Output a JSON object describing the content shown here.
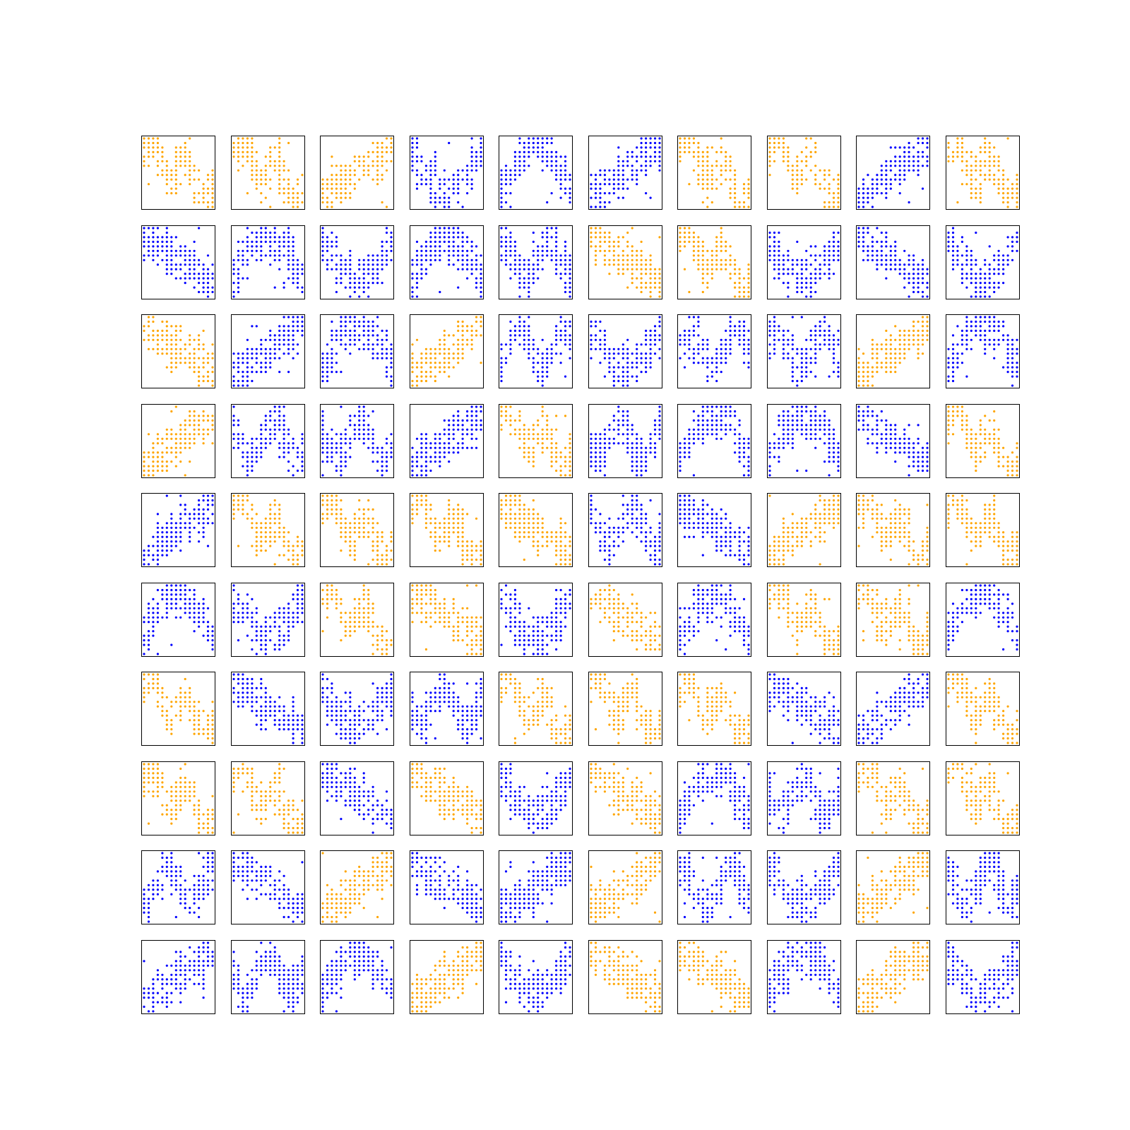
{
  "chart_data": {
    "type": "scatter",
    "title": "",
    "xlabel": "",
    "ylabel": "",
    "grid": false,
    "legend": "none",
    "layout": {
      "rows": 10,
      "cols": 10
    },
    "axis_range": {
      "x": [
        0,
        15
      ],
      "y": [
        0,
        15
      ]
    },
    "colors": {
      "orange": "#FFA500",
      "blue": "#0000FF",
      "frame": "#000000"
    },
    "panels": [
      {
        "color": "orange",
        "shape": "z"
      },
      {
        "color": "orange",
        "shape": "z"
      },
      {
        "color": "orange",
        "shape": "rise"
      },
      {
        "color": "blue",
        "shape": "valley"
      },
      {
        "color": "blue",
        "shape": "peak"
      },
      {
        "color": "blue",
        "shape": "rise"
      },
      {
        "color": "orange",
        "shape": "z"
      },
      {
        "color": "orange",
        "shape": "z"
      },
      {
        "color": "blue",
        "shape": "rise"
      },
      {
        "color": "orange",
        "shape": "z"
      },
      {
        "color": "blue",
        "shape": "fall"
      },
      {
        "color": "blue",
        "shape": "peak"
      },
      {
        "color": "blue",
        "shape": "valley"
      },
      {
        "color": "blue",
        "shape": "peak"
      },
      {
        "color": "blue",
        "shape": "wave"
      },
      {
        "color": "orange",
        "shape": "fall"
      },
      {
        "color": "orange",
        "shape": "z"
      },
      {
        "color": "blue",
        "shape": "valley"
      },
      {
        "color": "blue",
        "shape": "fall"
      },
      {
        "color": "blue",
        "shape": "valley"
      },
      {
        "color": "orange",
        "shape": "fall"
      },
      {
        "color": "blue",
        "shape": "rise"
      },
      {
        "color": "blue",
        "shape": "peak"
      },
      {
        "color": "orange",
        "shape": "rise"
      },
      {
        "color": "blue",
        "shape": "wave"
      },
      {
        "color": "blue",
        "shape": "valley"
      },
      {
        "color": "blue",
        "shape": "wave"
      },
      {
        "color": "blue",
        "shape": "wave"
      },
      {
        "color": "orange",
        "shape": "rise"
      },
      {
        "color": "blue",
        "shape": "peak"
      },
      {
        "color": "orange",
        "shape": "rise"
      },
      {
        "color": "blue",
        "shape": "wave"
      },
      {
        "color": "blue",
        "shape": "wave"
      },
      {
        "color": "blue",
        "shape": "rise"
      },
      {
        "color": "orange",
        "shape": "z"
      },
      {
        "color": "blue",
        "shape": "wave"
      },
      {
        "color": "blue",
        "shape": "peak"
      },
      {
        "color": "blue",
        "shape": "peak"
      },
      {
        "color": "blue",
        "shape": "fall"
      },
      {
        "color": "orange",
        "shape": "z"
      },
      {
        "color": "blue",
        "shape": "rise"
      },
      {
        "color": "orange",
        "shape": "z"
      },
      {
        "color": "orange",
        "shape": "z"
      },
      {
        "color": "orange",
        "shape": "z"
      },
      {
        "color": "orange",
        "shape": "fall"
      },
      {
        "color": "blue",
        "shape": "wave"
      },
      {
        "color": "blue",
        "shape": "fall"
      },
      {
        "color": "orange",
        "shape": "rise"
      },
      {
        "color": "orange",
        "shape": "z"
      },
      {
        "color": "orange",
        "shape": "z"
      },
      {
        "color": "blue",
        "shape": "peak"
      },
      {
        "color": "blue",
        "shape": "valley"
      },
      {
        "color": "orange",
        "shape": "z"
      },
      {
        "color": "orange",
        "shape": "fall"
      },
      {
        "color": "blue",
        "shape": "valley"
      },
      {
        "color": "orange",
        "shape": "fall"
      },
      {
        "color": "blue",
        "shape": "peak"
      },
      {
        "color": "orange",
        "shape": "z"
      },
      {
        "color": "orange",
        "shape": "z"
      },
      {
        "color": "blue",
        "shape": "peak"
      },
      {
        "color": "orange",
        "shape": "z"
      },
      {
        "color": "blue",
        "shape": "fall"
      },
      {
        "color": "blue",
        "shape": "valley"
      },
      {
        "color": "blue",
        "shape": "wave"
      },
      {
        "color": "orange",
        "shape": "z"
      },
      {
        "color": "orange",
        "shape": "z"
      },
      {
        "color": "orange",
        "shape": "z"
      },
      {
        "color": "blue",
        "shape": "fall"
      },
      {
        "color": "blue",
        "shape": "rise"
      },
      {
        "color": "orange",
        "shape": "z"
      },
      {
        "color": "orange",
        "shape": "z"
      },
      {
        "color": "orange",
        "shape": "z"
      },
      {
        "color": "blue",
        "shape": "fall"
      },
      {
        "color": "orange",
        "shape": "fall"
      },
      {
        "color": "blue",
        "shape": "valley"
      },
      {
        "color": "orange",
        "shape": "fall"
      },
      {
        "color": "blue",
        "shape": "peak"
      },
      {
        "color": "blue",
        "shape": "wave"
      },
      {
        "color": "orange",
        "shape": "z"
      },
      {
        "color": "orange",
        "shape": "z"
      },
      {
        "color": "blue",
        "shape": "wave"
      },
      {
        "color": "blue",
        "shape": "fall"
      },
      {
        "color": "orange",
        "shape": "rise"
      },
      {
        "color": "blue",
        "shape": "fall"
      },
      {
        "color": "blue",
        "shape": "rise"
      },
      {
        "color": "orange",
        "shape": "rise"
      },
      {
        "color": "blue",
        "shape": "wave"
      },
      {
        "color": "blue",
        "shape": "valley"
      },
      {
        "color": "orange",
        "shape": "rise"
      },
      {
        "color": "blue",
        "shape": "wave"
      },
      {
        "color": "blue",
        "shape": "rise"
      },
      {
        "color": "blue",
        "shape": "wave"
      },
      {
        "color": "blue",
        "shape": "peak"
      },
      {
        "color": "orange",
        "shape": "rise"
      },
      {
        "color": "blue",
        "shape": "valley"
      },
      {
        "color": "orange",
        "shape": "fall"
      },
      {
        "color": "orange",
        "shape": "fall"
      },
      {
        "color": "blue",
        "shape": "peak"
      },
      {
        "color": "orange",
        "shape": "rise"
      },
      {
        "color": "blue",
        "shape": "valley"
      }
    ]
  }
}
